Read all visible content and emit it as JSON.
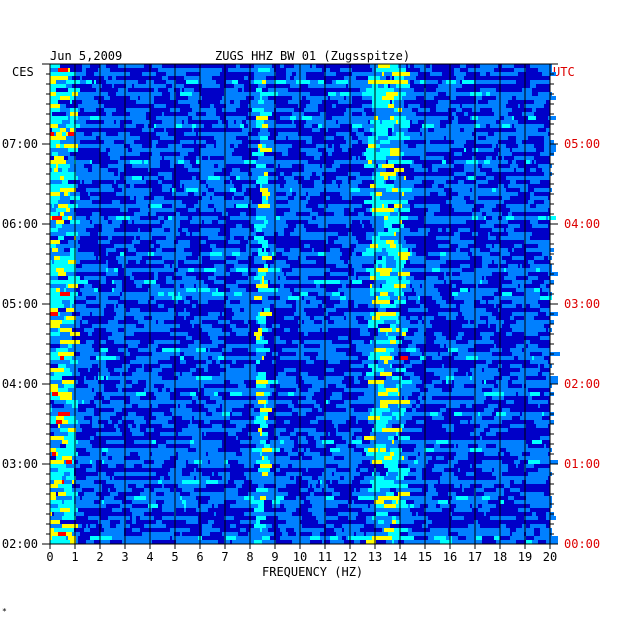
{
  "chart_data": {
    "type": "heatmap",
    "header_date": "Jun 5,2009",
    "title": "ZUGS HHZ BW 01 (Zugsspitze)",
    "left_timezone": "CES",
    "right_timezone": "UTC",
    "xlabel": "FREQUENCY (HZ)",
    "x_range": [
      0,
      20
    ],
    "x_ticks": [
      "0",
      "1",
      "2",
      "3",
      "4",
      "5",
      "6",
      "7",
      "8",
      "9",
      "10",
      "11",
      "12",
      "13",
      "14",
      "15",
      "16",
      "17",
      "18",
      "19",
      "20"
    ],
    "left_time_ticks": [
      "07:00",
      "06:00",
      "05:00",
      "04:00",
      "03:00",
      "02:00"
    ],
    "right_time_ticks": [
      "05:00",
      "04:00",
      "03:00",
      "02:00",
      "01:00",
      "00:00"
    ],
    "time_range_utc": [
      "00:00",
      "06:00"
    ],
    "colorscale": [
      "#000080",
      "#0000ff",
      "#0080ff",
      "#00ffff",
      "#ffff00",
      "#ff0000"
    ],
    "dominant_energy_bands_hz": [
      [
        0,
        1
      ],
      [
        8.3,
        8.7
      ],
      [
        12.8,
        14.2
      ]
    ],
    "corner_mark": "*"
  }
}
